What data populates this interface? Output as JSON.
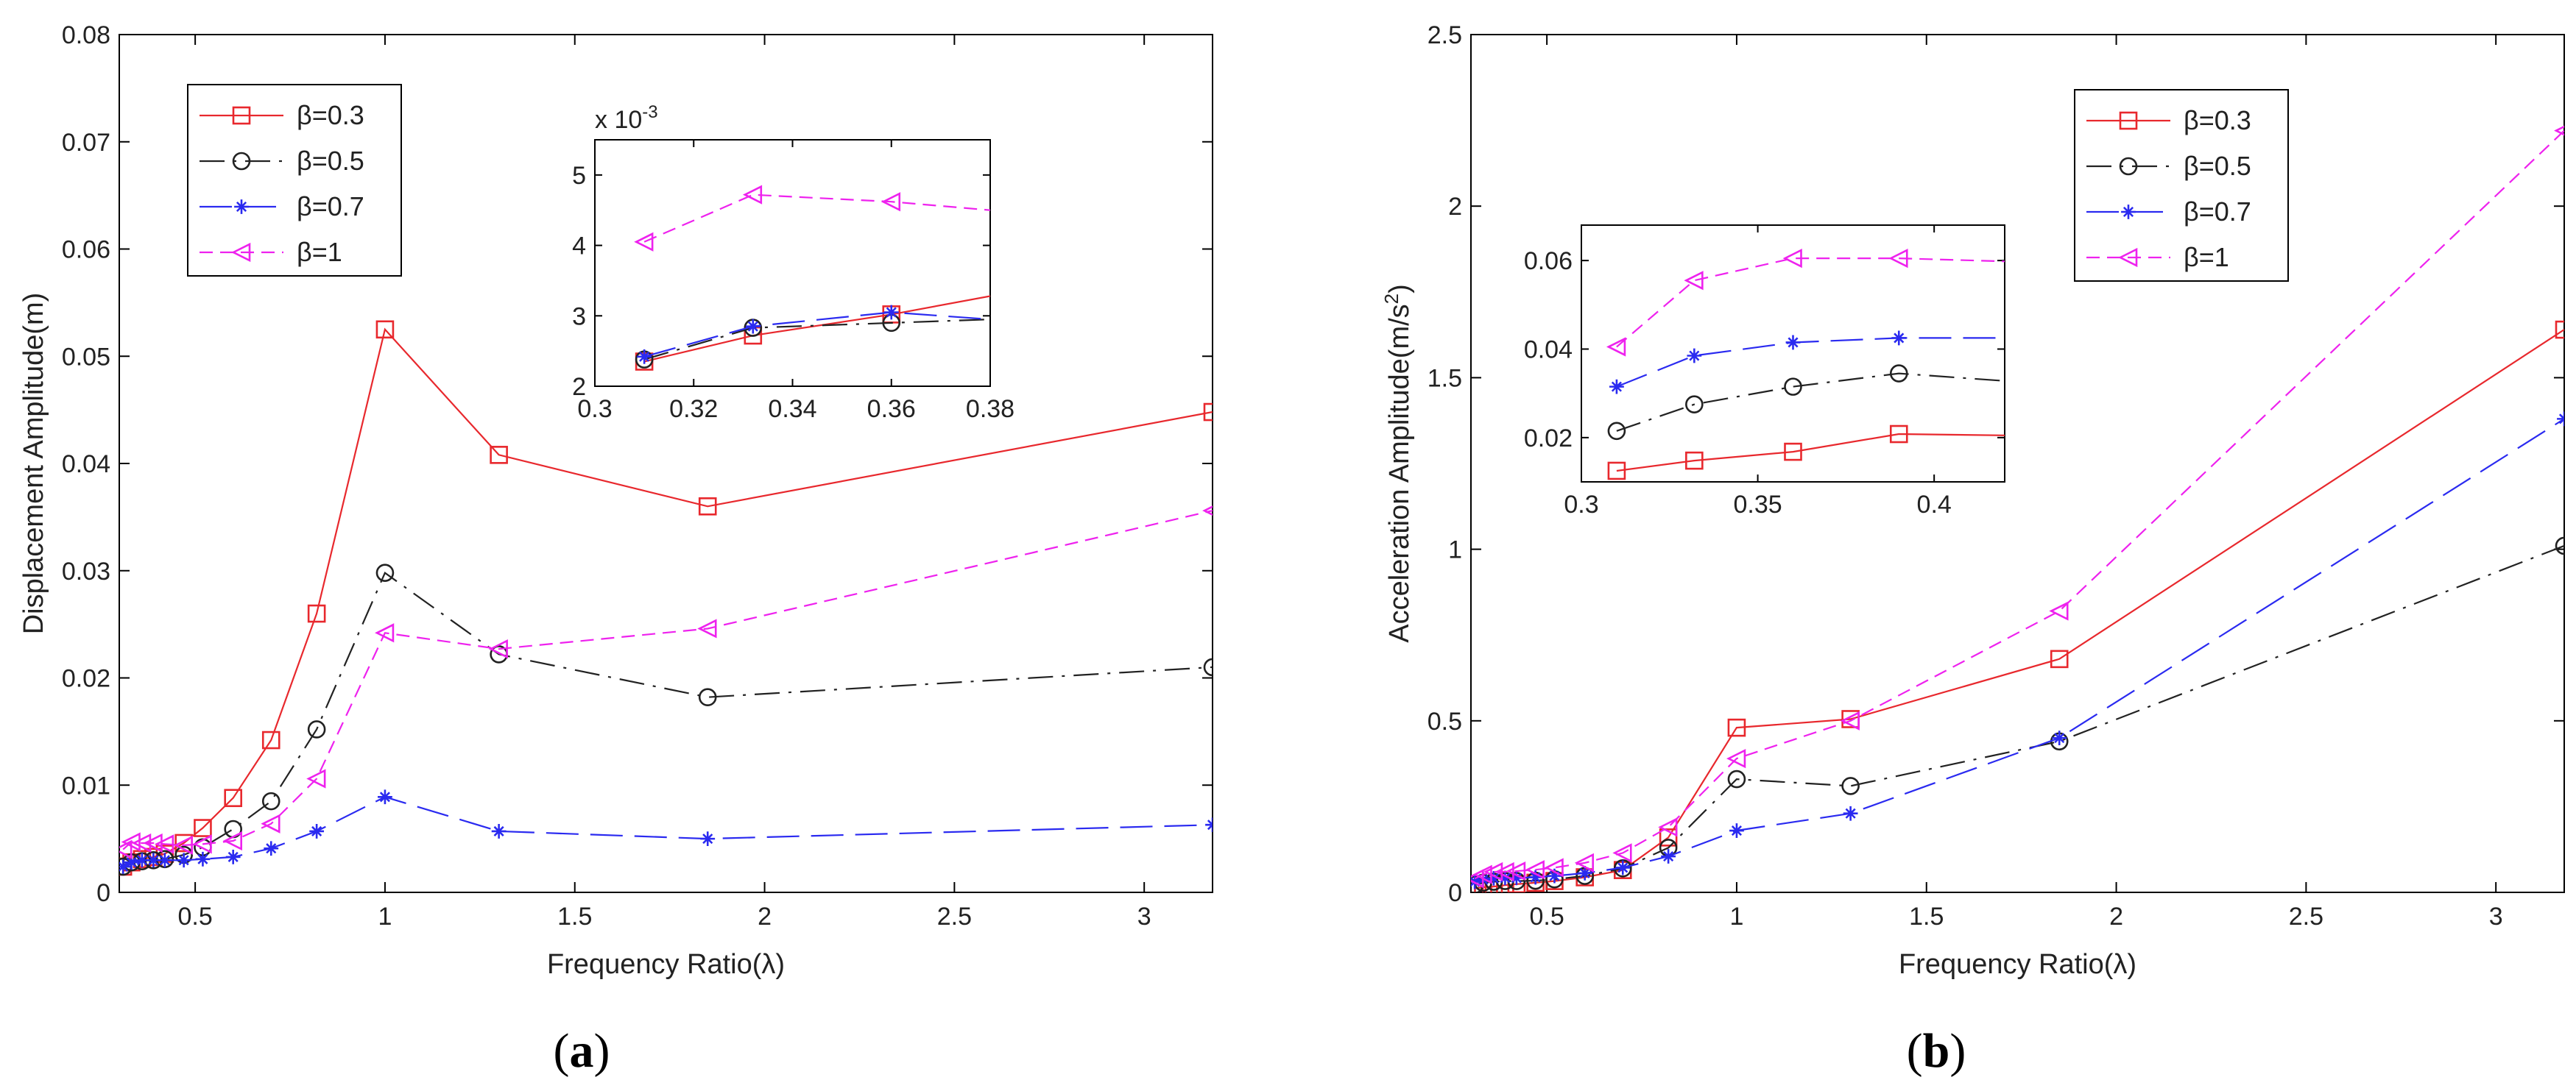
{
  "colors": {
    "beta_0_3": "#e8282d",
    "beta_0_5": "#222222",
    "beta_0_7": "#2a2af0",
    "beta_1": "#ee22ee"
  },
  "captions": {
    "a": {
      "open": "(",
      "letter": "a",
      "close": ")"
    },
    "b": {
      "open": "(",
      "letter": "b",
      "close": ")"
    }
  },
  "chart_data": [
    {
      "id": "a",
      "type": "line",
      "xlabel": "Frequency Ratio(λ)",
      "ylabel": "Displacement Amplitude(m)",
      "xlim": [
        0.3,
        3.18
      ],
      "ylim": [
        0,
        0.08
      ],
      "xticks": [
        0.5,
        1,
        1.5,
        2,
        2.5,
        3
      ],
      "xtick_labels": [
        "0.5",
        "1",
        "1.5",
        "2",
        "2.5",
        "3"
      ],
      "yticks": [
        0,
        0.01,
        0.02,
        0.03,
        0.04,
        0.05,
        0.06,
        0.07,
        0.08
      ],
      "ytick_labels": [
        "0",
        "0.01",
        "0.02",
        "0.03",
        "0.04",
        "0.05",
        "0.06",
        "0.07",
        "0.08"
      ],
      "legend": "top-left",
      "series": [
        {
          "name": "β=0.3",
          "color": "#e8282d",
          "dash": "solid",
          "marker": "square",
          "x": [
            0.31,
            0.332,
            0.36,
            0.39,
            0.42,
            0.47,
            0.52,
            0.6,
            0.7,
            0.82,
            1.0,
            1.3,
            1.85,
            3.18
          ],
          "y": [
            0.0024,
            0.0028,
            0.0031,
            0.0033,
            0.0036,
            0.0046,
            0.006,
            0.0088,
            0.0142,
            0.026,
            0.0525,
            0.0408,
            0.036,
            0.0448
          ]
        },
        {
          "name": "β=0.5",
          "color": "#222222",
          "dash": "dashdot",
          "marker": "circle",
          "x": [
            0.31,
            0.332,
            0.36,
            0.39,
            0.42,
            0.47,
            0.52,
            0.6,
            0.7,
            0.82,
            1.0,
            1.3,
            1.85,
            3.18
          ],
          "y": [
            0.0024,
            0.0028,
            0.0029,
            0.003,
            0.0031,
            0.0035,
            0.0042,
            0.0059,
            0.0085,
            0.0152,
            0.0298,
            0.0222,
            0.0182,
            0.021
          ]
        },
        {
          "name": "β=0.7",
          "color": "#2a2af0",
          "dash": "longdash",
          "marker": "star",
          "x": [
            0.31,
            0.332,
            0.36,
            0.39,
            0.42,
            0.47,
            0.52,
            0.6,
            0.7,
            0.82,
            1.0,
            1.3,
            1.85,
            3.18
          ],
          "y": [
            0.0024,
            0.0028,
            0.003,
            0.003,
            0.003,
            0.003,
            0.0031,
            0.0033,
            0.0041,
            0.0057,
            0.0089,
            0.0057,
            0.005,
            0.0063
          ]
        },
        {
          "name": "β=1",
          "color": "#ee22ee",
          "dash": "dashed",
          "marker": "triangle-left",
          "x": [
            0.31,
            0.332,
            0.36,
            0.39,
            0.42,
            0.47,
            0.52,
            0.6,
            0.7,
            0.82,
            1.0,
            1.3,
            1.85,
            3.18
          ],
          "y": [
            0.004,
            0.0047,
            0.0046,
            0.0046,
            0.0045,
            0.0044,
            0.0045,
            0.0048,
            0.0064,
            0.0106,
            0.0242,
            0.0227,
            0.0246,
            0.0356
          ]
        }
      ],
      "inset": {
        "type": "line",
        "multiplier": "x 10",
        "multiplier_exp": "-3",
        "xlim": [
          0.3,
          0.38
        ],
        "ylim": [
          2,
          5.5
        ],
        "xticks": [
          0.3,
          0.32,
          0.34,
          0.36,
          0.38
        ],
        "xtick_labels": [
          "0.3",
          "0.32",
          "0.34",
          "0.36",
          "0.38"
        ],
        "yticks": [
          2,
          3,
          4,
          5
        ],
        "ytick_labels": [
          "2",
          "3",
          "4",
          "5"
        ],
        "series": [
          {
            "name": "β=0.3",
            "x": [
              0.31,
              0.332,
              0.36,
              0.38
            ],
            "y": [
              2.35,
              2.72,
              3.02,
              3.28
            ],
            "marked": [
              true,
              true,
              true,
              false
            ]
          },
          {
            "name": "β=0.5",
            "x": [
              0.31,
              0.332,
              0.36,
              0.38
            ],
            "y": [
              2.38,
              2.83,
              2.9,
              2.95
            ],
            "marked": [
              true,
              true,
              true,
              false
            ]
          },
          {
            "name": "β=0.7",
            "x": [
              0.31,
              0.332,
              0.36,
              0.38
            ],
            "y": [
              2.42,
              2.85,
              3.05,
              2.95
            ],
            "marked": [
              true,
              true,
              true,
              false
            ]
          },
          {
            "name": "β=1",
            "x": [
              0.31,
              0.332,
              0.36,
              0.38
            ],
            "y": [
              4.05,
              4.72,
              4.62,
              4.5
            ],
            "marked": [
              true,
              true,
              true,
              false
            ]
          }
        ]
      }
    },
    {
      "id": "b",
      "type": "line",
      "xlabel": "Frequency Ratio(λ)",
      "ylabel_main": "Acceleration Amplitude(m/s",
      "ylabel_sup": "2",
      "ylabel_end": ")",
      "xlim": [
        0.3,
        3.18
      ],
      "ylim": [
        0,
        2.5
      ],
      "xticks": [
        0.5,
        1,
        1.5,
        2,
        2.5,
        3
      ],
      "xtick_labels": [
        "0.5",
        "1",
        "1.5",
        "2",
        "2.5",
        "3"
      ],
      "yticks": [
        0,
        0.5,
        1,
        1.5,
        2,
        2.5
      ],
      "ytick_labels": [
        "0",
        "0.5",
        "1",
        "1.5",
        "2",
        "2.5"
      ],
      "legend": "top-right",
      "series": [
        {
          "name": "β=0.3",
          "color": "#e8282d",
          "dash": "solid",
          "marker": "square",
          "x": [
            0.31,
            0.332,
            0.36,
            0.39,
            0.42,
            0.47,
            0.52,
            0.6,
            0.7,
            0.82,
            1.0,
            1.3,
            1.85,
            3.18
          ],
          "y": [
            0.012,
            0.015,
            0.017,
            0.021,
            0.024,
            0.028,
            0.033,
            0.044,
            0.065,
            0.16,
            0.48,
            0.505,
            0.68,
            1.64
          ]
        },
        {
          "name": "β=0.5",
          "color": "#222222",
          "dash": "dashdot",
          "marker": "circle",
          "x": [
            0.31,
            0.332,
            0.36,
            0.39,
            0.42,
            0.47,
            0.52,
            0.6,
            0.7,
            0.82,
            1.0,
            1.3,
            1.85,
            3.18
          ],
          "y": [
            0.022,
            0.028,
            0.031,
            0.033,
            0.033,
            0.034,
            0.038,
            0.048,
            0.07,
            0.13,
            0.33,
            0.31,
            0.44,
            1.01
          ]
        },
        {
          "name": "β=0.7",
          "color": "#2a2af0",
          "dash": "longdash",
          "marker": "star",
          "x": [
            0.31,
            0.332,
            0.36,
            0.39,
            0.42,
            0.47,
            0.52,
            0.6,
            0.7,
            0.82,
            1.0,
            1.3,
            1.85,
            3.18
          ],
          "y": [
            0.031,
            0.037,
            0.041,
            0.042,
            0.042,
            0.044,
            0.048,
            0.056,
            0.072,
            0.105,
            0.18,
            0.23,
            0.45,
            1.38
          ]
        },
        {
          "name": "β=1",
          "color": "#ee22ee",
          "dash": "dashed",
          "marker": "triangle-left",
          "x": [
            0.31,
            0.332,
            0.36,
            0.39,
            0.42,
            0.47,
            0.52,
            0.6,
            0.7,
            0.82,
            1.0,
            1.3,
            1.85,
            3.18
          ],
          "y": [
            0.04,
            0.052,
            0.06,
            0.06,
            0.062,
            0.066,
            0.072,
            0.086,
            0.115,
            0.19,
            0.39,
            0.5,
            0.82,
            2.22
          ]
        }
      ],
      "inset": {
        "type": "line",
        "xlim": [
          0.3,
          0.42
        ],
        "ylim": [
          0.01,
          0.068
        ],
        "xticks": [
          0.3,
          0.35,
          0.4
        ],
        "xtick_labels": [
          "0.3",
          "0.35",
          "0.4"
        ],
        "yticks": [
          0.02,
          0.04,
          0.06
        ],
        "ytick_labels": [
          "0.02",
          "0.04",
          "0.06"
        ],
        "series": [
          {
            "name": "β=0.3",
            "x": [
              0.31,
              0.332,
              0.36,
              0.39,
              0.42
            ],
            "y": [
              0.0125,
              0.0148,
              0.0168,
              0.0208,
              0.0205
            ],
            "marked": [
              true,
              true,
              true,
              true,
              false
            ]
          },
          {
            "name": "β=0.5",
            "x": [
              0.31,
              0.332,
              0.36,
              0.39,
              0.42
            ],
            "y": [
              0.0215,
              0.0275,
              0.0315,
              0.0345,
              0.0328
            ],
            "marked": [
              true,
              true,
              true,
              true,
              false
            ]
          },
          {
            "name": "β=0.7",
            "x": [
              0.31,
              0.332,
              0.36,
              0.39,
              0.42
            ],
            "y": [
              0.0315,
              0.0385,
              0.0415,
              0.0425,
              0.0425
            ],
            "marked": [
              true,
              true,
              true,
              true,
              false
            ]
          },
          {
            "name": "β=1",
            "x": [
              0.31,
              0.332,
              0.36,
              0.39,
              0.42
            ],
            "y": [
              0.0405,
              0.0555,
              0.0605,
              0.0605,
              0.0598
            ],
            "marked": [
              true,
              true,
              true,
              true,
              false
            ]
          }
        ]
      }
    }
  ]
}
